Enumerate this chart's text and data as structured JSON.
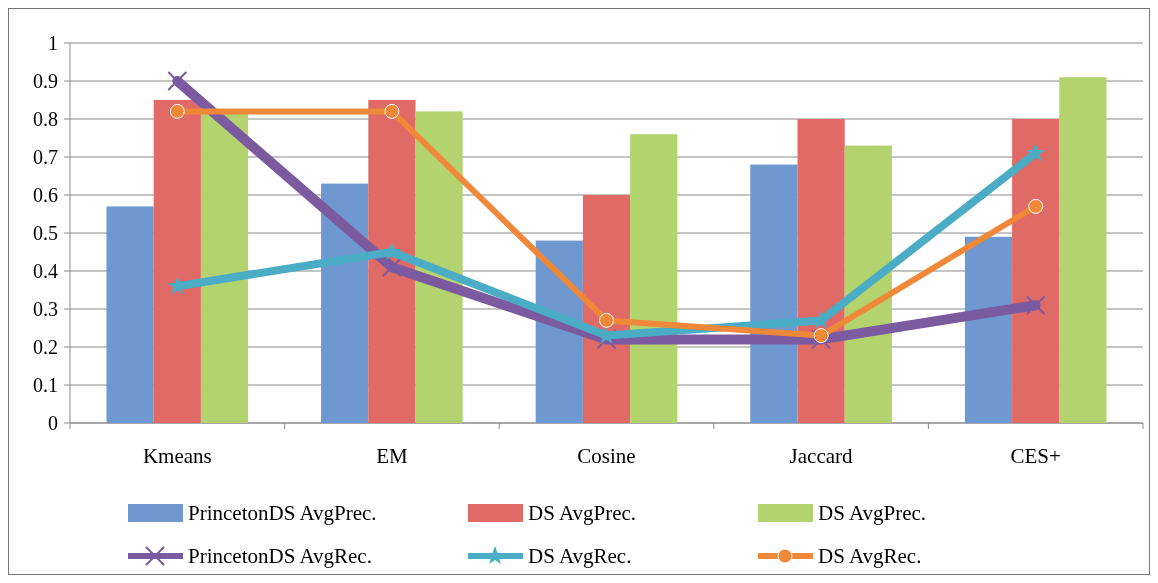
{
  "chart_data": {
    "type": "bar",
    "categories": [
      "Kmeans",
      "EM",
      "Cosine",
      "Jaccard",
      "CES+"
    ],
    "series": [
      {
        "name": "PrincetonDS AvgPrec.",
        "color": "#6f98d0",
        "values": [
          0.57,
          0.63,
          0.48,
          0.68,
          0.49
        ]
      },
      {
        "name": "DS AvgPrec.",
        "color": "#e06a66",
        "values": [
          0.85,
          0.85,
          0.6,
          0.8,
          0.8
        ]
      },
      {
        "name": "DS AvgPrec.",
        "color": "#b2d36e",
        "values": [
          0.82,
          0.82,
          0.76,
          0.73,
          0.91
        ]
      },
      {
        "name": "PrincetonDS AvgRec.",
        "type": "line",
        "marker": "cross",
        "color": "#7b5aa0",
        "values": [
          0.9,
          0.41,
          0.22,
          0.22,
          0.31
        ]
      },
      {
        "name": "DS AvgRec.",
        "type": "line",
        "marker": "star",
        "color": "#4bacc6",
        "values": [
          0.36,
          0.45,
          0.23,
          0.27,
          0.71
        ]
      },
      {
        "name": "DS AvgRec.",
        "type": "line",
        "marker": "circle",
        "color": "#f0883a",
        "values": [
          0.82,
          0.82,
          0.27,
          0.23,
          0.57
        ]
      }
    ],
    "ylim": [
      0,
      1
    ],
    "yticks": [
      0,
      0.1,
      0.2,
      0.3,
      0.4,
      0.5,
      0.6,
      0.7,
      0.8,
      0.9,
      1
    ],
    "grid": "y",
    "legend": "bottom"
  }
}
